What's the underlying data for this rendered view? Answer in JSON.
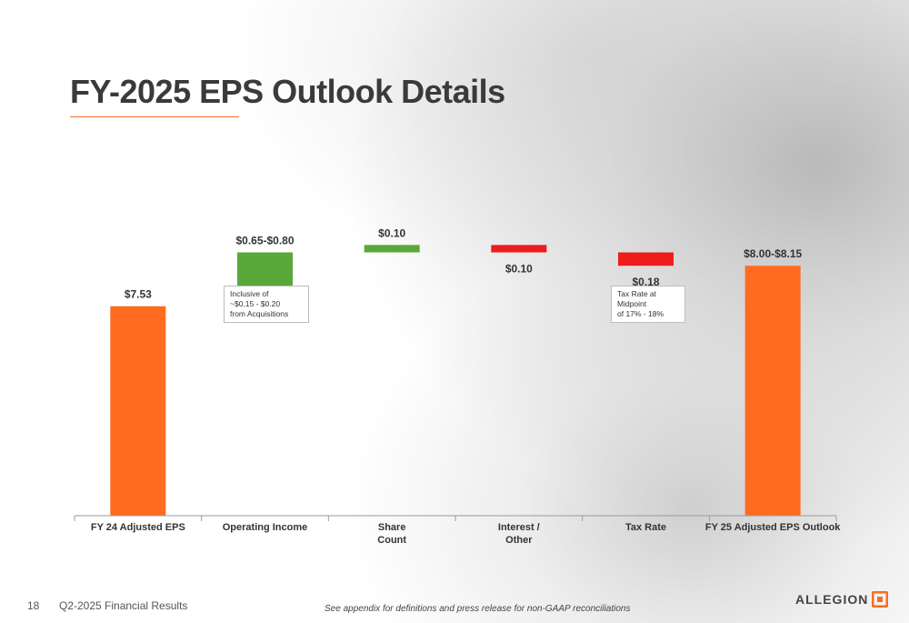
{
  "page": {
    "title": "FY-2025 EPS Outlook Details"
  },
  "chart_data": {
    "type": "waterfall",
    "title": "",
    "categories": [
      "FY 24 Adjusted EPS",
      "Operating Income",
      "Share\nCount",
      "Interest /\nOther",
      "Tax Rate",
      "FY 25 Adjusted EPS Outlook"
    ],
    "steps": [
      {
        "kind": "total",
        "start": 0,
        "end": 7.53,
        "label": "$7.53",
        "color": "#ff6b1f"
      },
      {
        "kind": "increase",
        "start": 7.53,
        "end": 8.255,
        "label": "$0.65-$0.80",
        "color": "#59a83a"
      },
      {
        "kind": "increase",
        "start": 8.255,
        "end": 8.355,
        "label": "$0.10",
        "color": "#59a83a"
      },
      {
        "kind": "decrease",
        "start": 8.355,
        "end": 8.255,
        "label": "$0.10",
        "color": "#ee1c1c"
      },
      {
        "kind": "decrease",
        "start": 8.255,
        "end": 8.075,
        "label": "$0.18",
        "color": "#ee1c1c"
      },
      {
        "kind": "total",
        "start": 0,
        "end": 8.075,
        "label": "$8.00-$8.15",
        "color": "#ff6b1f"
      }
    ],
    "ylim": [
      0,
      8.8
    ],
    "notes": [
      {
        "category_index": 1,
        "text": "Inclusive of\n~$0.15 - $0.20\n from Acquisitions"
      },
      {
        "category_index": 4,
        "text": "Tax Rate at Midpoint\nof 17% - 18%"
      }
    ]
  },
  "footer": {
    "page_number": "18",
    "report": "Q2-2025 Financial Results",
    "footnote": "See appendix for definitions and press release for non-GAAP reconciliations",
    "logo_text": "ALLEGION",
    "logo_color": "#f37021"
  }
}
